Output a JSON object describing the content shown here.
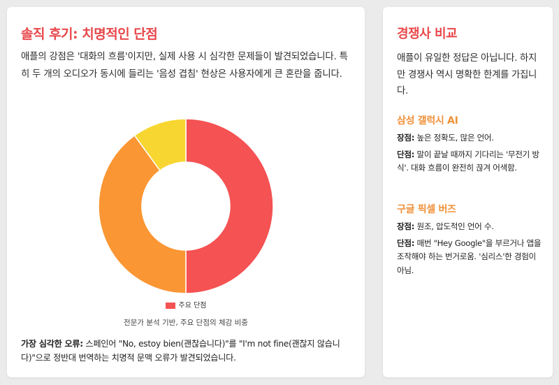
{
  "left": {
    "title": "솔직 후기: 치명적인 단점",
    "intro": "애플의 강점은 '대화의 흐름'이지만, 실제 사용 시 심각한 문제들이 발견되었습니다. 특히 두 개의 오디오가 동시에 들리는 '음성 겹침' 현상은 사용자에게 큰 혼란을 줍니다.",
    "legend_label": "주요 단점",
    "chart_caption": "전문가 분석 기반, 주요 단점의 체감 비중",
    "note_label": "가장 심각한 오류:",
    "note_text": " 스페인어 \"No, estoy bien(괜찮습니다)\"를 \"I'm not fine(괜찮지 않습니다)\"으로 정반대 번역하는 치명적 문맥 오류가 발견되었습니다."
  },
  "right": {
    "title": "경쟁사 비교",
    "intro": "애플이 유일한 정답은 아닙니다. 하지만 경쟁사 역시 명확한 한계를 가집니다.",
    "competitors": [
      {
        "name": "삼성 갤럭시 AI",
        "pro_label": "장점:",
        "pro_text": " 높은 정확도, 많은 언어.",
        "con_label": "단점:",
        "con_text": " 말이 끝날 때까지 기다리는 '무전기 방식'. 대화 흐름이 완전히 끊겨 어색함."
      },
      {
        "name": "구글 픽셀 버즈",
        "pro_label": "장점:",
        "pro_text": " 원조, 압도적인 언어 수.",
        "con_label": "단점:",
        "con_text": " 매번 \"Hey Google\"을 부르거나 앱을 조작해야 하는 번거로움. '심리스'한 경험이 아님."
      }
    ]
  },
  "chart_data": {
    "type": "pie",
    "donut": true,
    "title": "",
    "legend": [
      "주요 단점"
    ],
    "legend_position": "bottom",
    "values": [
      50,
      40,
      10
    ],
    "colors": [
      "#f55253",
      "#fa9633",
      "#f8d631"
    ]
  }
}
